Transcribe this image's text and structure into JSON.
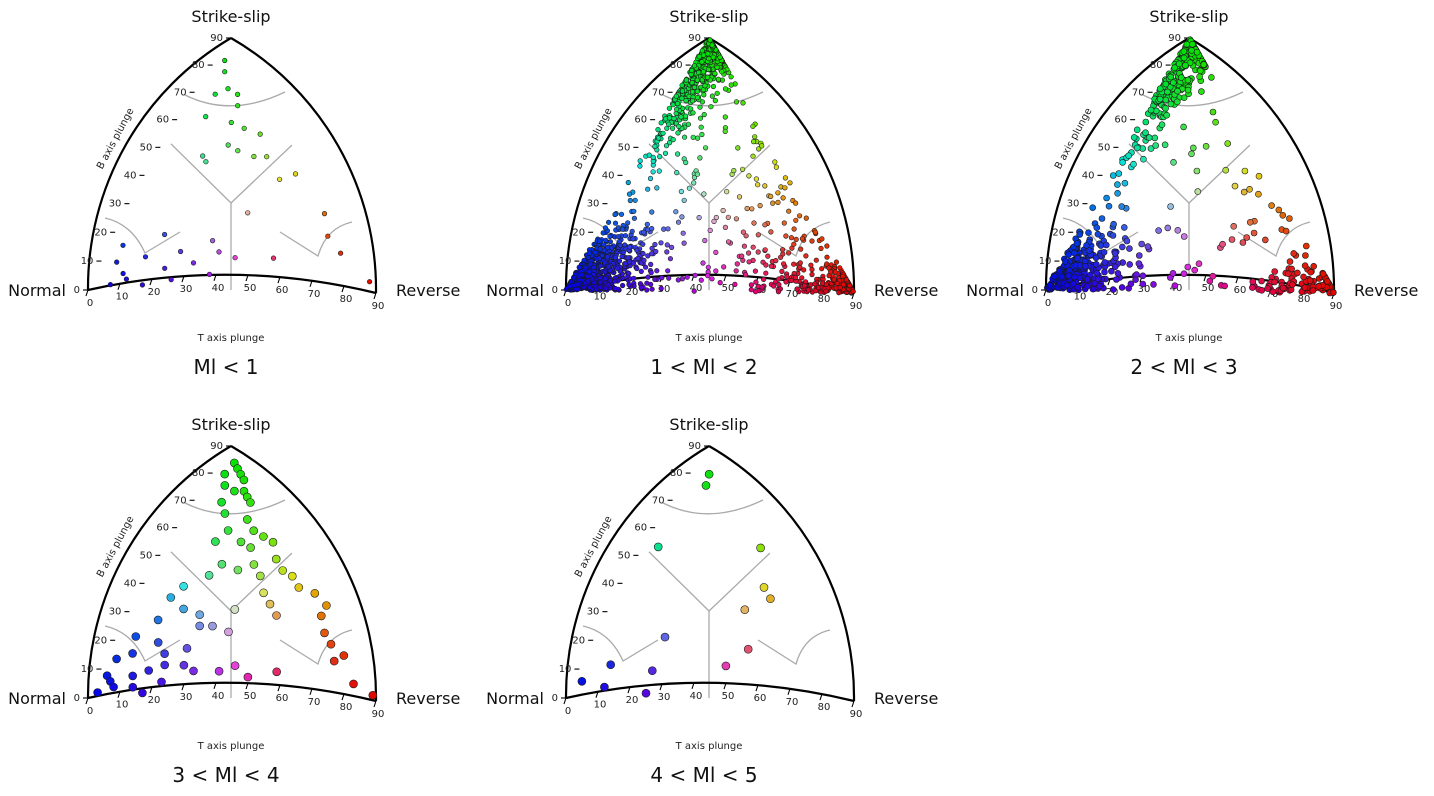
{
  "chart_data": [
    {
      "type": "scatter",
      "title": "Ml < 1",
      "vertex_labels": {
        "top": "Strike-slip",
        "left": "Normal",
        "right": "Reverse"
      },
      "xlabel": "T axis plunge",
      "ylabel": "B axis plunge",
      "x_ticks": [
        "0",
        "10",
        "20",
        "30",
        "40",
        "50",
        "60",
        "70",
        "80",
        "90"
      ],
      "y_ticks": [
        "0",
        "10",
        "20",
        "30",
        "40",
        "50",
        "60",
        "70",
        "80",
        "90"
      ],
      "xlim": [
        0,
        90
      ],
      "ylim": [
        0,
        90
      ],
      "marker_size": "small",
      "points": [
        {
          "x": 2,
          "y": 82
        },
        {
          "x": 4,
          "y": 78
        },
        {
          "x": 8,
          "y": 72
        },
        {
          "x": 5,
          "y": 70
        },
        {
          "x": 12,
          "y": 70
        },
        {
          "x": 14,
          "y": 66
        },
        {
          "x": 6,
          "y": 62
        },
        {
          "x": 15,
          "y": 60
        },
        {
          "x": 20,
          "y": 58
        },
        {
          "x": 18,
          "y": 52
        },
        {
          "x": 22,
          "y": 50
        },
        {
          "x": 26,
          "y": 56
        },
        {
          "x": 12,
          "y": 48
        },
        {
          "x": 28,
          "y": 48
        },
        {
          "x": 32,
          "y": 48
        },
        {
          "x": 40,
          "y": 40
        },
        {
          "x": 44,
          "y": 42
        },
        {
          "x": 14,
          "y": 46
        },
        {
          "x": 36,
          "y": 28
        },
        {
          "x": 52,
          "y": 12
        },
        {
          "x": 72,
          "y": 14
        },
        {
          "x": 65,
          "y": 20
        },
        {
          "x": 60,
          "y": 28
        },
        {
          "x": 86,
          "y": 4
        },
        {
          "x": 4,
          "y": 10
        },
        {
          "x": 8,
          "y": 6
        },
        {
          "x": 3,
          "y": 16
        },
        {
          "x": 12,
          "y": 12
        },
        {
          "x": 14,
          "y": 20
        },
        {
          "x": 20,
          "y": 8
        },
        {
          "x": 24,
          "y": 4
        },
        {
          "x": 28,
          "y": 10
        },
        {
          "x": 35,
          "y": 6
        },
        {
          "x": 16,
          "y": 2
        },
        {
          "x": 6,
          "y": 2
        },
        {
          "x": 30,
          "y": 18
        },
        {
          "x": 40,
          "y": 12
        },
        {
          "x": 22,
          "y": 14
        },
        {
          "x": 10,
          "y": 4
        },
        {
          "x": 34,
          "y": 14
        }
      ]
    },
    {
      "type": "scatter",
      "title": "1 < Ml < 2",
      "vertex_labels": {
        "top": "Strike-slip",
        "left": "Normal",
        "right": "Reverse"
      },
      "xlabel": "T axis plunge",
      "ylabel": "B axis plunge",
      "x_ticks": [
        "0",
        "10",
        "20",
        "30",
        "40",
        "50",
        "60",
        "70",
        "80",
        "90"
      ],
      "y_ticks": [
        "0",
        "10",
        "20",
        "30",
        "40",
        "50",
        "60",
        "70",
        "80",
        "90"
      ],
      "xlim": [
        0,
        90
      ],
      "ylim": [
        0,
        90
      ],
      "marker_size": "small",
      "generated_count": 1400,
      "seed": 11,
      "weights": {
        "top": 0.3,
        "left": 0.4,
        "right": 0.12,
        "uniform": 0.18
      }
    },
    {
      "type": "scatter",
      "title": "2 < Ml < 3",
      "vertex_labels": {
        "top": "Strike-slip",
        "left": "Normal",
        "right": "Reverse"
      },
      "xlabel": "T axis plunge",
      "ylabel": "B axis plunge",
      "x_ticks": [
        "0",
        "10",
        "20",
        "30",
        "40",
        "50",
        "60",
        "70",
        "80",
        "90"
      ],
      "y_ticks": [
        "0",
        "10",
        "20",
        "30",
        "40",
        "50",
        "60",
        "70",
        "80",
        "90"
      ],
      "xlim": [
        0,
        90
      ],
      "ylim": [
        0,
        90
      ],
      "marker_size": "medium",
      "generated_count": 700,
      "seed": 23,
      "weights": {
        "top": 0.34,
        "left": 0.4,
        "right": 0.1,
        "uniform": 0.16
      }
    },
    {
      "type": "scatter",
      "title": "3 < Ml < 4",
      "vertex_labels": {
        "top": "Strike-slip",
        "left": "Normal",
        "right": "Reverse"
      },
      "xlabel": "T axis plunge",
      "ylabel": "B axis plunge",
      "x_ticks": [
        "0",
        "10",
        "20",
        "30",
        "40",
        "50",
        "60",
        "70",
        "80",
        "90"
      ],
      "y_ticks": [
        "0",
        "10",
        "20",
        "30",
        "40",
        "50",
        "60",
        "70",
        "80",
        "90"
      ],
      "xlim": [
        0,
        90
      ],
      "ylim": [
        0,
        90
      ],
      "marker_size": "large",
      "points": [
        {
          "x": 4,
          "y": 84
        },
        {
          "x": 6,
          "y": 82
        },
        {
          "x": 3,
          "y": 80
        },
        {
          "x": 8,
          "y": 80
        },
        {
          "x": 10,
          "y": 78
        },
        {
          "x": 5,
          "y": 76
        },
        {
          "x": 9,
          "y": 74
        },
        {
          "x": 12,
          "y": 74
        },
        {
          "x": 14,
          "y": 72
        },
        {
          "x": 7,
          "y": 70
        },
        {
          "x": 16,
          "y": 70
        },
        {
          "x": 10,
          "y": 66
        },
        {
          "x": 18,
          "y": 64
        },
        {
          "x": 22,
          "y": 60
        },
        {
          "x": 14,
          "y": 60
        },
        {
          "x": 26,
          "y": 58
        },
        {
          "x": 20,
          "y": 56
        },
        {
          "x": 30,
          "y": 56
        },
        {
          "x": 12,
          "y": 56
        },
        {
          "x": 24,
          "y": 54
        },
        {
          "x": 34,
          "y": 50
        },
        {
          "x": 28,
          "y": 48
        },
        {
          "x": 38,
          "y": 46
        },
        {
          "x": 18,
          "y": 48
        },
        {
          "x": 42,
          "y": 44
        },
        {
          "x": 46,
          "y": 40
        },
        {
          "x": 52,
          "y": 38
        },
        {
          "x": 56,
          "y": 36
        },
        {
          "x": 32,
          "y": 44
        },
        {
          "x": 24,
          "y": 46
        },
        {
          "x": 36,
          "y": 38
        },
        {
          "x": 40,
          "y": 34
        },
        {
          "x": 44,
          "y": 30
        },
        {
          "x": 30,
          "y": 32
        },
        {
          "x": 16,
          "y": 44
        },
        {
          "x": 58,
          "y": 30
        },
        {
          "x": 62,
          "y": 24
        },
        {
          "x": 66,
          "y": 20
        },
        {
          "x": 72,
          "y": 16
        },
        {
          "x": 70,
          "y": 14
        },
        {
          "x": 80,
          "y": 6
        },
        {
          "x": 88,
          "y": 2
        },
        {
          "x": 10,
          "y": 40
        },
        {
          "x": 8,
          "y": 36
        },
        {
          "x": 14,
          "y": 32
        },
        {
          "x": 20,
          "y": 30
        },
        {
          "x": 22,
          "y": 26
        },
        {
          "x": 26,
          "y": 26
        },
        {
          "x": 32,
          "y": 24
        },
        {
          "x": 8,
          "y": 28
        },
        {
          "x": 4,
          "y": 22
        },
        {
          "x": 2,
          "y": 14
        },
        {
          "x": 6,
          "y": 16
        },
        {
          "x": 12,
          "y": 20
        },
        {
          "x": 16,
          "y": 16
        },
        {
          "x": 18,
          "y": 12
        },
        {
          "x": 14,
          "y": 10
        },
        {
          "x": 10,
          "y": 8
        },
        {
          "x": 2,
          "y": 8
        },
        {
          "x": 4,
          "y": 6
        },
        {
          "x": 6,
          "y": 4
        },
        {
          "x": 12,
          "y": 4
        },
        {
          "x": 20,
          "y": 6
        },
        {
          "x": 16,
          "y": 2
        },
        {
          "x": 2,
          "y": 2
        },
        {
          "x": 28,
          "y": 10
        },
        {
          "x": 36,
          "y": 10
        },
        {
          "x": 40,
          "y": 12
        },
        {
          "x": 46,
          "y": 8
        },
        {
          "x": 54,
          "y": 10
        },
        {
          "x": 22,
          "y": 18
        },
        {
          "x": 24,
          "y": 12
        }
      ]
    },
    {
      "type": "scatter",
      "title": "4 < Ml < 5",
      "vertex_labels": {
        "top": "Strike-slip",
        "left": "Normal",
        "right": "Reverse"
      },
      "xlabel": "T axis plunge",
      "ylabel": "B axis plunge",
      "x_ticks": [
        "0",
        "10",
        "20",
        "30",
        "40",
        "50",
        "60",
        "70",
        "80",
        "90"
      ],
      "y_ticks": [
        "0",
        "10",
        "20",
        "30",
        "40",
        "50",
        "60",
        "70",
        "80",
        "90"
      ],
      "xlim": [
        0,
        90
      ],
      "ylim": [
        0,
        90
      ],
      "marker_size": "large",
      "points": [
        {
          "x": 5,
          "y": 80
        },
        {
          "x": 6,
          "y": 76
        },
        {
          "x": 2,
          "y": 54
        },
        {
          "x": 34,
          "y": 54
        },
        {
          "x": 42,
          "y": 40
        },
        {
          "x": 46,
          "y": 36
        },
        {
          "x": 40,
          "y": 32
        },
        {
          "x": 20,
          "y": 22
        },
        {
          "x": 48,
          "y": 18
        },
        {
          "x": 44,
          "y": 12
        },
        {
          "x": 22,
          "y": 10
        },
        {
          "x": 8,
          "y": 12
        },
        {
          "x": 2,
          "y": 6
        },
        {
          "x": 10,
          "y": 4
        },
        {
          "x": 24,
          "y": 2
        }
      ]
    }
  ]
}
